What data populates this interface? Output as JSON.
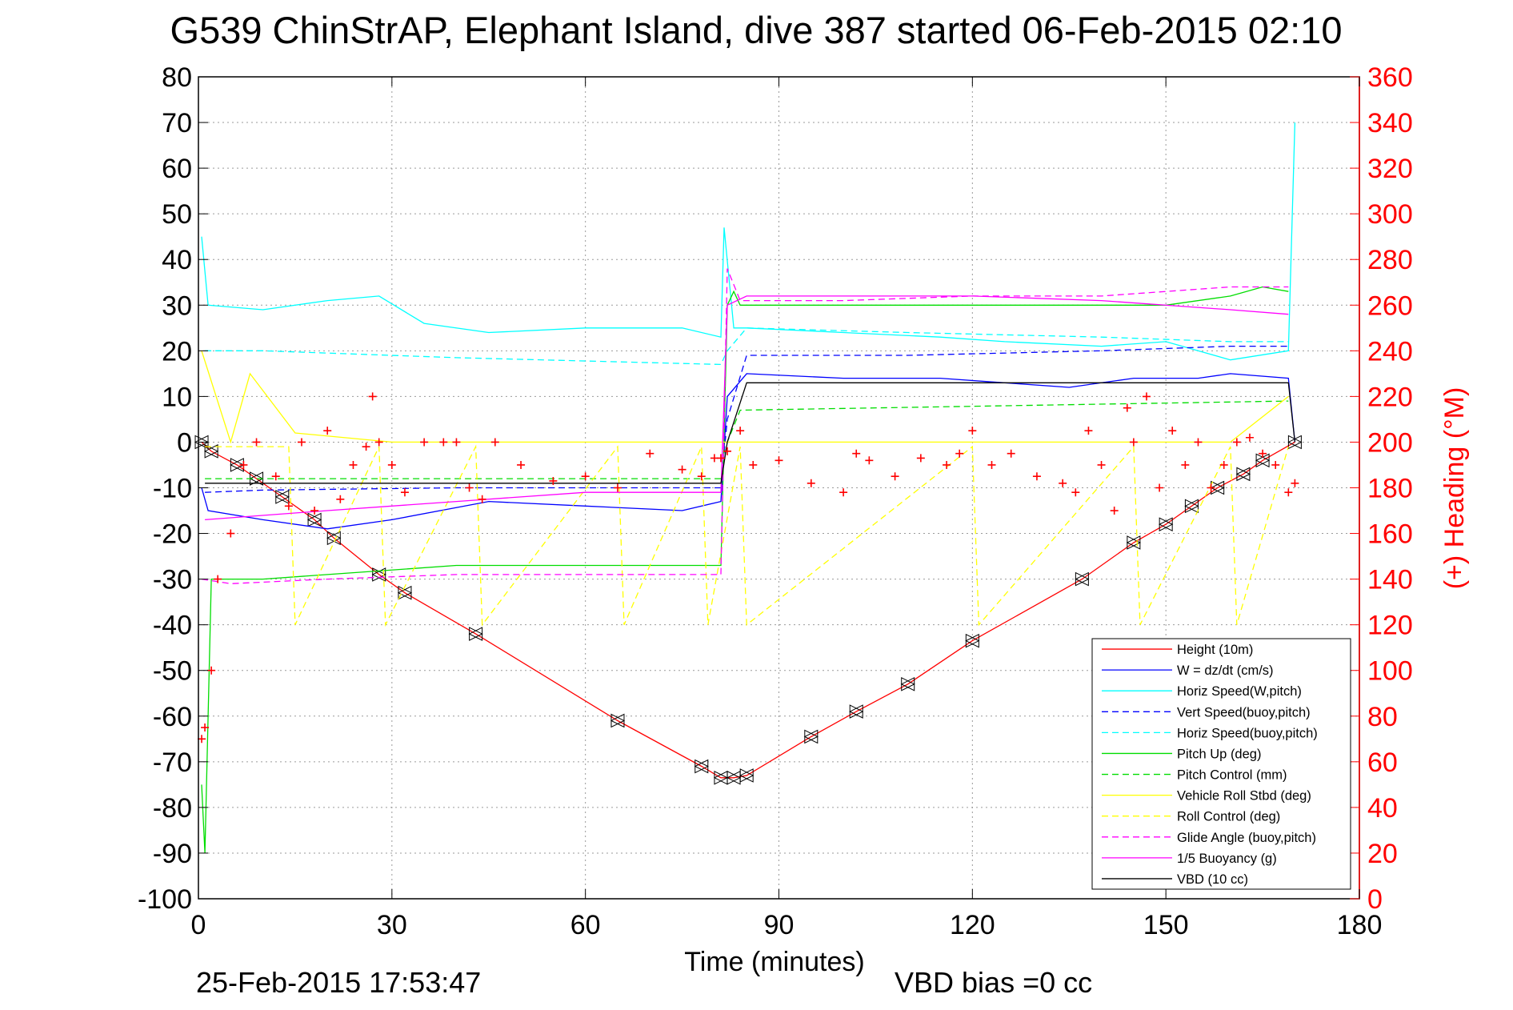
{
  "chart_data": {
    "type": "line",
    "title": "G539 ChinStrAP, Elephant Island, dive 387 started 06-Feb-2015 02:10",
    "xlabel": "Time (minutes)",
    "ylabel": "",
    "y2label": "(+) Heading (°M)",
    "xlim": [
      0,
      180
    ],
    "ylim": [
      -100,
      80
    ],
    "y2lim": [
      0,
      360
    ],
    "x_ticks": [
      "0",
      "30",
      "60",
      "90",
      "120",
      "150",
      "180"
    ],
    "y_ticks": [
      "80",
      "70",
      "60",
      "50",
      "40",
      "30",
      "20",
      "10",
      "0",
      "-10",
      "-20",
      "-30",
      "-40",
      "-50",
      "-60",
      "-70",
      "-80",
      "-90",
      "-100"
    ],
    "y2_ticks": [
      "360",
      "340",
      "320",
      "300",
      "280",
      "260",
      "240",
      "220",
      "200",
      "180",
      "160",
      "140",
      "120",
      "100",
      "80",
      "60",
      "40",
      "20",
      "0"
    ],
    "grid": true,
    "legend_position": "lower-right",
    "footer_left": "25-Feb-2015 17:53:47",
    "footer_right": "VBD bias =0 cc",
    "series": [
      {
        "name": "Height (10m)",
        "color": "#ff0000",
        "style": "solid",
        "marker": "triangle",
        "x": [
          0.5,
          2,
          6,
          9,
          13,
          18,
          21,
          28,
          32,
          43,
          65,
          78,
          81,
          83,
          85,
          95,
          102,
          110,
          120,
          137,
          145,
          150,
          154,
          158,
          162,
          165,
          170
        ],
        "y": [
          0,
          -2,
          -5,
          -8,
          -12,
          -17,
          -21,
          -29,
          -33,
          -42,
          -61,
          -71,
          -73.5,
          -73.5,
          -73,
          -64.5,
          -59,
          -53,
          -43.5,
          -30,
          -22,
          -18,
          -14,
          -10,
          -7,
          -4,
          0
        ]
      },
      {
        "name": "W = dz/dt (cm/s)",
        "color": "#0000ff",
        "style": "solid",
        "marker": "none",
        "x": [
          0.5,
          1.5,
          10,
          20,
          30,
          45,
          60,
          75,
          81,
          82,
          85,
          100,
          115,
          125,
          135,
          145,
          155,
          160,
          169,
          170
        ],
        "y": [
          -10,
          -15,
          -17,
          -19,
          -17,
          -13,
          -14,
          -15,
          -13,
          10,
          15,
          14,
          14,
          13,
          12,
          14,
          14,
          15,
          14,
          0
        ]
      },
      {
        "name": "Horiz Speed(W,pitch)",
        "color": "#00ffff",
        "style": "solid",
        "marker": "none",
        "x": [
          0.5,
          1.5,
          10,
          20,
          28,
          35,
          45,
          60,
          75,
          81,
          81.5,
          83,
          85,
          100,
          115,
          125,
          140,
          150,
          160,
          169,
          170
        ],
        "y": [
          45,
          30,
          29,
          31,
          32,
          26,
          24,
          25,
          25,
          23,
          47,
          25,
          25,
          24,
          23,
          22,
          21,
          22,
          18,
          20,
          70
        ]
      },
      {
        "name": "Vert Speed(buoy,pitch)",
        "color": "#0000ff",
        "style": "dashed",
        "marker": "none",
        "x": [
          1,
          10,
          40,
          81,
          82,
          85,
          110,
          140,
          160,
          169
        ],
        "y": [
          -11,
          -10.5,
          -10,
          -10,
          5,
          19,
          19,
          20,
          21,
          21
        ]
      },
      {
        "name": "Horiz Speed(buoy,pitch)",
        "color": "#00ffff",
        "style": "dashed",
        "marker": "none",
        "x": [
          1,
          10,
          40,
          81,
          82,
          85,
          110,
          140,
          160,
          169
        ],
        "y": [
          20,
          20,
          18.5,
          17,
          20,
          25,
          24,
          23,
          22,
          22
        ]
      },
      {
        "name": "Pitch Up (deg)",
        "color": "#00dd00",
        "style": "solid",
        "marker": "none",
        "x": [
          0.5,
          1,
          2,
          10,
          20,
          40,
          60,
          78,
          81,
          82,
          83,
          84,
          100,
          120,
          140,
          150,
          160,
          165,
          169
        ],
        "y": [
          -75,
          -90,
          -30,
          -30,
          -29,
          -27,
          -27,
          -27,
          -27,
          30,
          33,
          30,
          30,
          30,
          30,
          30,
          32,
          34,
          33
        ]
      },
      {
        "name": "Pitch Control (mm)",
        "color": "#00dd00",
        "style": "dashed",
        "marker": "none",
        "x": [
          1,
          81,
          82,
          84,
          169
        ],
        "y": [
          -8,
          -8,
          0,
          7,
          9
        ]
      },
      {
        "name": "Vehicle Roll Stbd (deg)",
        "color": "#ffff00",
        "style": "solid",
        "marker": "none",
        "x": [
          0.5,
          5,
          8,
          15,
          30,
          45,
          60,
          81,
          85,
          100,
          120,
          140,
          160,
          169
        ],
        "y": [
          20,
          0,
          15,
          2,
          0,
          0,
          0,
          0,
          0,
          0,
          0,
          0,
          0,
          10
        ]
      },
      {
        "name": "Roll Control (deg)",
        "color": "#ffff00",
        "style": "dashed",
        "marker": "none",
        "x": [
          1,
          14,
          15,
          28,
          29,
          43,
          44,
          65,
          66,
          78,
          79,
          84,
          85,
          120,
          121,
          145,
          146,
          160,
          161,
          169
        ],
        "y": [
          -1,
          -1,
          -40,
          -1,
          -40,
          -1,
          -40,
          -1,
          -40,
          -1,
          -40,
          -1,
          -40,
          -1,
          -40,
          -1,
          -40,
          -1,
          -40,
          -1
        ]
      },
      {
        "name": "Glide Angle (buoy,pitch)",
        "color": "#ff00ff",
        "style": "dashed",
        "marker": "none",
        "x": [
          0.5,
          5,
          20,
          40,
          60,
          81,
          82,
          84,
          100,
          120,
          140,
          150,
          160,
          169
        ],
        "y": [
          -30,
          -31,
          -30,
          -29,
          -29,
          -29,
          38,
          31,
          31,
          32,
          32,
          33,
          34,
          34
        ]
      },
      {
        "name": "1/5 Buoyancy (g)",
        "color": "#ff00ff",
        "style": "solid",
        "marker": "none",
        "x": [
          1,
          20,
          40,
          60,
          81,
          82,
          85,
          100,
          120,
          140,
          160,
          169
        ],
        "y": [
          -17,
          -15,
          -13,
          -11,
          -11,
          30,
          32,
          32,
          32,
          31,
          29,
          28
        ]
      },
      {
        "name": "VBD (10 cc)",
        "color": "#000000",
        "style": "solid",
        "marker": "none",
        "x": [
          1,
          81,
          82,
          85,
          169,
          170
        ],
        "y": [
          -9,
          -9,
          0,
          13,
          13,
          0
        ]
      },
      {
        "name": "Heading",
        "axis": "right",
        "color": "#ff0000",
        "style": "markers",
        "marker": "plus",
        "x": [
          0.5,
          1,
          2,
          3,
          5,
          7,
          9,
          12,
          14,
          16,
          18,
          20,
          22,
          24,
          26,
          27,
          28,
          30,
          32,
          35,
          38,
          40,
          42,
          44,
          46,
          50,
          55,
          60,
          65,
          70,
          75,
          78,
          80,
          81,
          82,
          84,
          86,
          90,
          95,
          100,
          102,
          104,
          108,
          112,
          116,
          118,
          120,
          123,
          126,
          130,
          134,
          136,
          138,
          140,
          142,
          144,
          145,
          147,
          149,
          151,
          153,
          155,
          157,
          159,
          161,
          163,
          165,
          167,
          169,
          170
        ],
        "y": [
          70,
          75,
          100,
          140,
          160,
          190,
          200,
          185,
          172,
          200,
          170,
          205,
          175,
          190,
          198,
          220,
          200,
          190,
          178,
          200,
          200,
          200,
          180,
          175,
          200,
          190,
          183,
          185,
          180,
          195,
          188,
          185,
          193,
          193,
          196,
          205,
          190,
          192,
          182,
          178,
          195,
          192,
          185,
          193,
          190,
          195,
          205,
          190,
          195,
          185,
          182,
          178,
          205,
          190,
          170,
          215,
          200,
          220,
          180,
          205,
          190,
          200,
          180,
          190,
          200,
          202,
          195,
          190,
          178,
          182
        ]
      }
    ]
  }
}
